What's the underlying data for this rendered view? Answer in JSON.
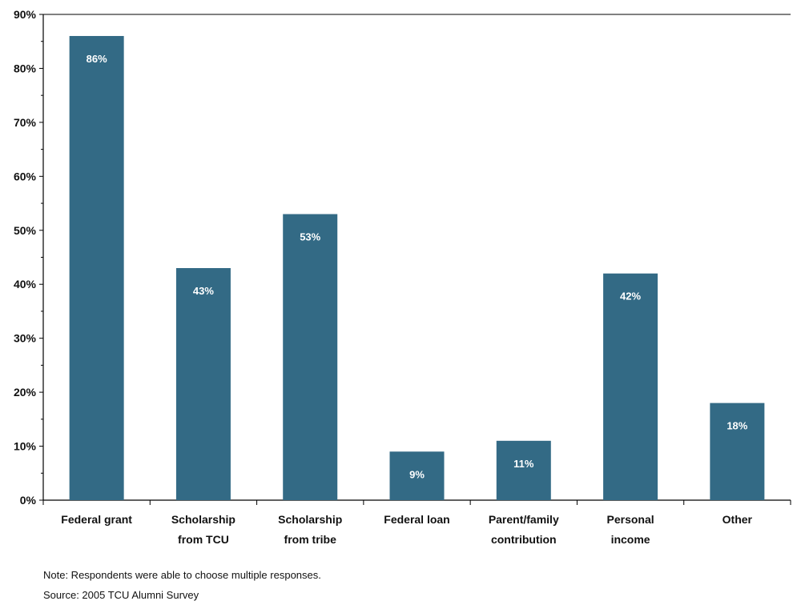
{
  "chart_data": {
    "type": "bar",
    "categories": [
      [
        "Federal grant"
      ],
      [
        "Scholarship",
        "from TCU"
      ],
      [
        "Scholarship",
        "from tribe"
      ],
      [
        "Federal loan"
      ],
      [
        "Parent/family",
        "contribution"
      ],
      [
        "Personal",
        "income"
      ],
      [
        "Other"
      ]
    ],
    "values": [
      86,
      43,
      53,
      9,
      11,
      42,
      18
    ],
    "value_labels": [
      "86%",
      "43%",
      "53%",
      "9%",
      "11%",
      "42%",
      "18%"
    ],
    "ylim": [
      0,
      90
    ],
    "yticks": [
      0,
      10,
      20,
      30,
      40,
      50,
      60,
      70,
      80,
      90
    ],
    "ytick_labels": [
      "0%",
      "10%",
      "20%",
      "30%",
      "40%",
      "50%",
      "60%",
      "70%",
      "80%",
      "90%"
    ],
    "bar_color": "#336a85",
    "label_color": "#ffffff",
    "grid": false
  },
  "notes": {
    "note": "Note:  Respondents were able to choose multiple responses.",
    "source": "Source:  2005 TCU Alumni Survey"
  }
}
